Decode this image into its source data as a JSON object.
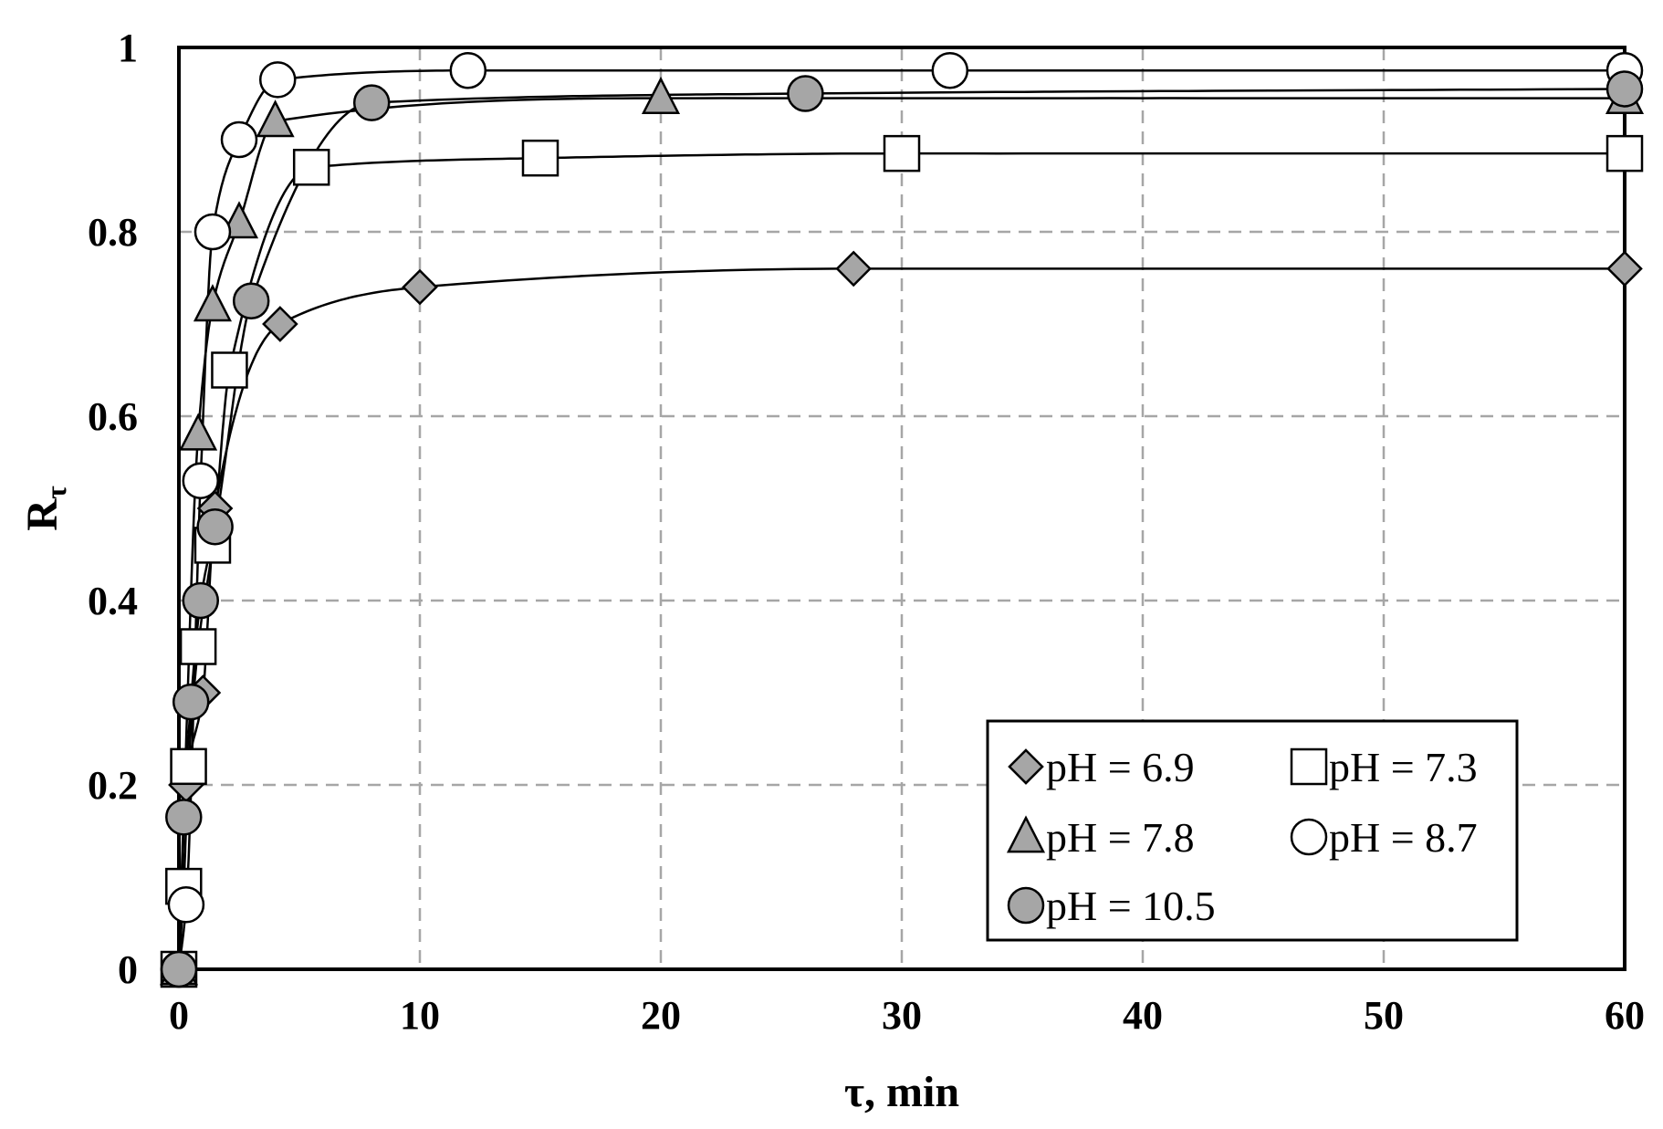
{
  "chart_data": {
    "type": "scatter",
    "xlabel": "τ, min",
    "ylabel_main": "R",
    "ylabel_sub": "τ",
    "xlim": [
      0,
      60
    ],
    "ylim": [
      0,
      1
    ],
    "x_ticks": [
      "0",
      "10",
      "20",
      "30",
      "40",
      "50",
      "60"
    ],
    "y_ticks": [
      "0",
      "0.2",
      "0.4",
      "0.6",
      "0.8",
      "1"
    ],
    "grid": true,
    "legend_position": "bottom-right",
    "series": [
      {
        "name": "pH = 6.9",
        "marker": "diamond",
        "fill": "#a6a6a6",
        "points": [
          [
            0,
            0
          ],
          [
            0.3,
            0.2
          ],
          [
            1,
            0.3
          ],
          [
            1.5,
            0.5
          ],
          [
            4.2,
            0.7
          ],
          [
            10,
            0.74
          ],
          [
            28,
            0.76
          ],
          [
            60,
            0.76
          ]
        ]
      },
      {
        "name": "pH = 7.3",
        "marker": "square",
        "fill": "#ffffff",
        "points": [
          [
            0,
            0
          ],
          [
            0.2,
            0.09
          ],
          [
            0.4,
            0.22
          ],
          [
            0.8,
            0.35
          ],
          [
            1.4,
            0.46
          ],
          [
            2.1,
            0.65
          ],
          [
            5.5,
            0.87
          ],
          [
            15,
            0.88
          ],
          [
            30,
            0.885
          ],
          [
            60,
            0.885
          ]
        ]
      },
      {
        "name": "pH = 7.8",
        "marker": "triangle",
        "fill": "#a6a6a6",
        "points": [
          [
            0,
            0
          ],
          [
            0.8,
            0.58
          ],
          [
            1.4,
            0.72
          ],
          [
            2.5,
            0.81
          ],
          [
            4,
            0.92
          ],
          [
            20,
            0.945
          ],
          [
            60,
            0.945
          ]
        ]
      },
      {
        "name": "pH = 8.7",
        "marker": "circle",
        "fill": "#ffffff",
        "points": [
          [
            0,
            0
          ],
          [
            0.3,
            0.07
          ],
          [
            0.9,
            0.53
          ],
          [
            1.4,
            0.8
          ],
          [
            2.5,
            0.9
          ],
          [
            4.1,
            0.965
          ],
          [
            12,
            0.975
          ],
          [
            32,
            0.975
          ],
          [
            60,
            0.975
          ]
        ]
      },
      {
        "name": "pH = 10.5",
        "marker": "circle",
        "fill": "#a6a6a6",
        "points": [
          [
            0,
            0
          ],
          [
            0.2,
            0.165
          ],
          [
            0.5,
            0.29
          ],
          [
            0.9,
            0.4
          ],
          [
            1.5,
            0.48
          ],
          [
            3,
            0.725
          ],
          [
            8,
            0.94
          ],
          [
            26,
            0.95
          ],
          [
            60,
            0.955
          ]
        ]
      }
    ]
  }
}
